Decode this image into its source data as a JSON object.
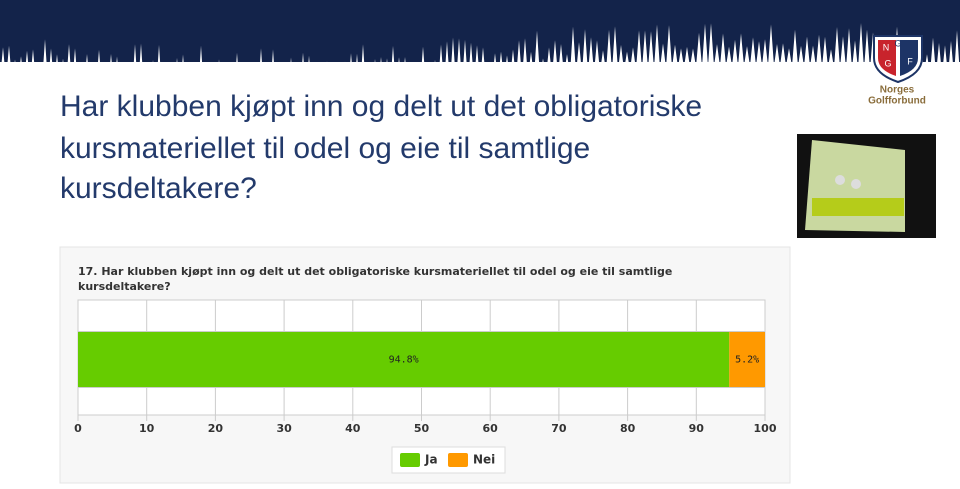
{
  "slide": {
    "title_lines": [
      "Har klubben kjøpt inn og delt ut det obligatoriske",
      "kursmateriellet til odel og eie til samtlige",
      "kursdeltakere?"
    ],
    "logo_letters": [
      "N",
      "G",
      "G",
      "F"
    ],
    "logo_name": [
      "Norges",
      "Golfforbund"
    ]
  },
  "chart_data": {
    "type": "stacked_bar",
    "orientation": "horizontal",
    "title_lines": [
      "17. Har klubben kjøpt inn og delt ut det obligatoriske kursmateriellet til odel og eie til samtlige",
      "kursdeltakere?"
    ],
    "categories": [
      null
    ],
    "series": [
      {
        "name": "Ja",
        "color": "#66cc00",
        "values": [
          94.8
        ],
        "value_labels": [
          "94.8%"
        ]
      },
      {
        "name": "Nei",
        "color": "#ff9900",
        "values": [
          5.2
        ],
        "value_labels": [
          "5.2%"
        ]
      }
    ],
    "xlim": [
      0,
      100
    ],
    "xticks": [
      0,
      10,
      20,
      30,
      40,
      50,
      60,
      70,
      80,
      90,
      100
    ],
    "grid": true,
    "legend": "bottom"
  }
}
